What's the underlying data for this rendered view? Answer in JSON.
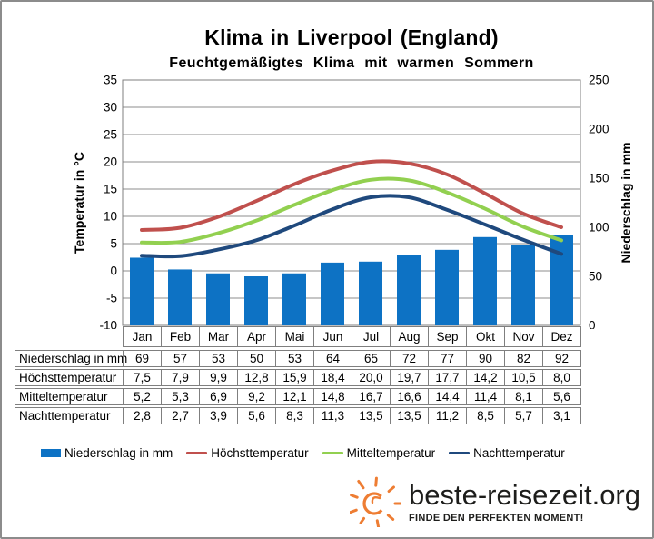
{
  "title": "Klima in Liverpool (England)",
  "subtitle": "Feuchtgemäßigtes Klima mit warmen Sommern",
  "chart_data": {
    "type": "bar+line combo",
    "categories": [
      "Jan",
      "Feb",
      "Mar",
      "Apr",
      "Mai",
      "Jun",
      "Jul",
      "Aug",
      "Sep",
      "Okt",
      "Nov",
      "Dez"
    ],
    "bar_series": {
      "name": "Niederschlag in mm",
      "axis": "right",
      "color": "#0d72c4",
      "values": [
        69,
        57,
        53,
        50,
        53,
        64,
        65,
        72,
        77,
        90,
        82,
        92
      ]
    },
    "line_series": [
      {
        "name": "Höchsttemperatur",
        "axis": "left",
        "color": "#c0504d",
        "values": [
          7.5,
          7.9,
          9.9,
          12.8,
          15.9,
          18.4,
          20.0,
          19.7,
          17.7,
          14.2,
          10.5,
          8.0
        ]
      },
      {
        "name": "Mitteltemperatur",
        "axis": "left",
        "color": "#92d050",
        "values": [
          5.2,
          5.3,
          6.9,
          9.2,
          12.1,
          14.8,
          16.7,
          16.6,
          14.4,
          11.4,
          8.1,
          5.6
        ]
      },
      {
        "name": "Nachttemperatur",
        "axis": "left",
        "color": "#1f497d",
        "values": [
          2.8,
          2.7,
          3.9,
          5.6,
          8.3,
          11.3,
          13.5,
          13.5,
          11.2,
          8.5,
          5.7,
          3.1
        ]
      }
    ],
    "left_axis": {
      "title": "Temperatur in °C",
      "min": -10,
      "max": 35,
      "ticks": [
        35,
        30,
        25,
        20,
        15,
        10,
        5,
        0,
        -5,
        -10
      ]
    },
    "right_axis": {
      "title": "Niederschlag in  mm",
      "min": 0,
      "max": 250,
      "ticks": [
        250,
        200,
        150,
        100,
        50,
        0
      ]
    },
    "grid": "horizontal",
    "grid_color": "#8c8c8c",
    "legend_position": "bottom"
  },
  "table": {
    "rows": [
      {
        "label": "Niederschlag in mm",
        "values": [
          "69",
          "57",
          "53",
          "50",
          "53",
          "64",
          "65",
          "72",
          "77",
          "90",
          "82",
          "92"
        ]
      },
      {
        "label": "Höchsttemperatur",
        "values": [
          "7,5",
          "7,9",
          "9,9",
          "12,8",
          "15,9",
          "18,4",
          "20,0",
          "19,7",
          "17,7",
          "14,2",
          "10,5",
          "8,0"
        ]
      },
      {
        "label": "Mitteltemperatur",
        "values": [
          "5,2",
          "5,3",
          "6,9",
          "9,2",
          "12,1",
          "14,8",
          "16,7",
          "16,6",
          "14,4",
          "11,4",
          "8,1",
          "5,6"
        ]
      },
      {
        "label": "Nachttemperatur",
        "values": [
          "2,8",
          "2,7",
          "3,9",
          "5,6",
          "8,3",
          "11,3",
          "13,5",
          "13,5",
          "11,2",
          "8,5",
          "5,7",
          "3,1"
        ]
      }
    ]
  },
  "legend": [
    {
      "label": "Niederschlag in mm",
      "swatch": "bar",
      "color": "#0d72c4"
    },
    {
      "label": "Höchsttemperatur",
      "swatch": "line",
      "color": "#c0504d"
    },
    {
      "label": "Mitteltemperatur",
      "swatch": "line",
      "color": "#92d050"
    },
    {
      "label": "Nachttemperatur",
      "swatch": "line",
      "color": "#1f497d"
    }
  ],
  "branding": {
    "site": "beste-reisezeit.org",
    "tagline": "FINDE DEN PERFEKTEN MOMENT!",
    "accent_color": "#ee7d33"
  }
}
